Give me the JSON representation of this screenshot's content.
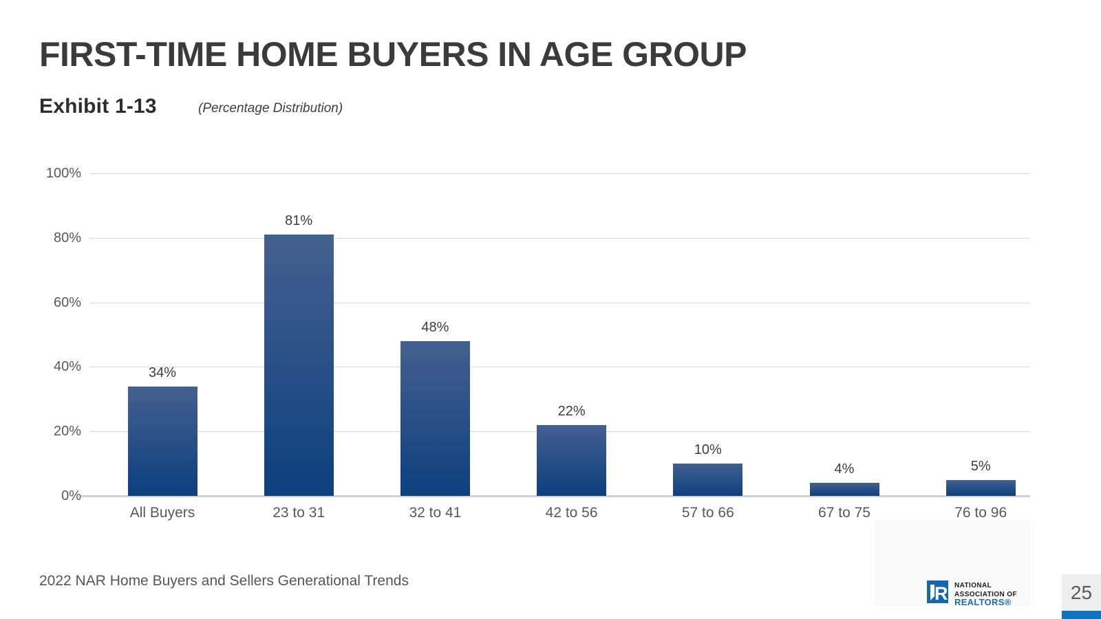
{
  "slide": {
    "title": "FIRST-TIME HOME BUYERS IN AGE GROUP",
    "exhibit_label": "Exhibit 1-13",
    "subtitle": "(Percentage Distribution)",
    "footer_source": "2022 NAR Home Buyers and Sellers Generational Trends",
    "page_number": "25"
  },
  "logo": {
    "icon": "nar-r-icon",
    "line1": "NATIONAL",
    "line2": "ASSOCIATION OF",
    "line3": "REALTORS®"
  },
  "chart_data": {
    "type": "bar",
    "title": "FIRST-TIME HOME BUYERS IN AGE GROUP",
    "subtitle": "(Percentage Distribution)",
    "categories": [
      "All Buyers",
      "23 to 31",
      "32 to 41",
      "42 to 56",
      "57 to 66",
      "67 to 75",
      "76 to 96"
    ],
    "values": [
      34,
      81,
      48,
      22,
      10,
      4,
      5
    ],
    "value_labels": [
      "34%",
      "81%",
      "48%",
      "22%",
      "10%",
      "4%",
      "5%"
    ],
    "xlabel": "",
    "ylabel": "",
    "y_ticks": [
      "0%",
      "20%",
      "40%",
      "60%",
      "80%",
      "100%"
    ],
    "ylim": [
      0,
      100
    ],
    "grid": "horizontal-only",
    "legend": "none"
  },
  "colors": {
    "bar_top": "#44608f",
    "bar_bottom": "#0c3f7e",
    "grid": "#d9d9d9",
    "text_dark": "#3b3b3b",
    "text_gray": "#595959",
    "logo_blue": "#1567ae",
    "realtors_blue": "#1b6db6",
    "accent_bar": "#1173bc"
  }
}
